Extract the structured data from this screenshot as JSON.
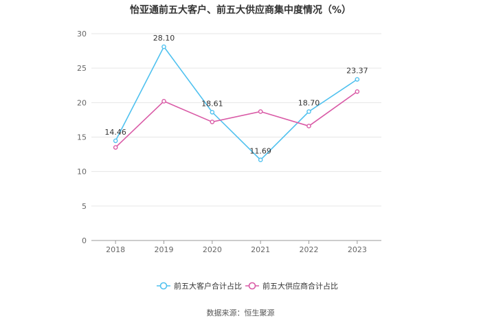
{
  "colors": {
    "customers": "#4fc1ef",
    "suppliers": "#d95aa6",
    "grid": "#e6e6e6",
    "axis": "#999999",
    "text": "#333333"
  },
  "chart_data": {
    "type": "line",
    "title": "怡亚通前五大客户、前五大供应商集中度情况（%）",
    "categories": [
      "2018",
      "2019",
      "2020",
      "2021",
      "2022",
      "2023"
    ],
    "ylim": [
      0,
      30
    ],
    "yticks": [
      0,
      5,
      10,
      15,
      20,
      25,
      30
    ],
    "grid": true,
    "legend_position": "bottom",
    "series": [
      {
        "name": "前五大客户合计占比",
        "values": [
          14.46,
          28.1,
          18.61,
          11.69,
          18.7,
          23.37
        ],
        "labels": [
          "14.46",
          "28.10",
          "18.61",
          "11.69",
          "18.70",
          "23.37"
        ]
      },
      {
        "name": "前五大供应商合计占比",
        "values": [
          13.5,
          20.2,
          17.2,
          18.7,
          16.6,
          21.6
        ]
      }
    ],
    "source": "数据来源：恒生聚源"
  }
}
